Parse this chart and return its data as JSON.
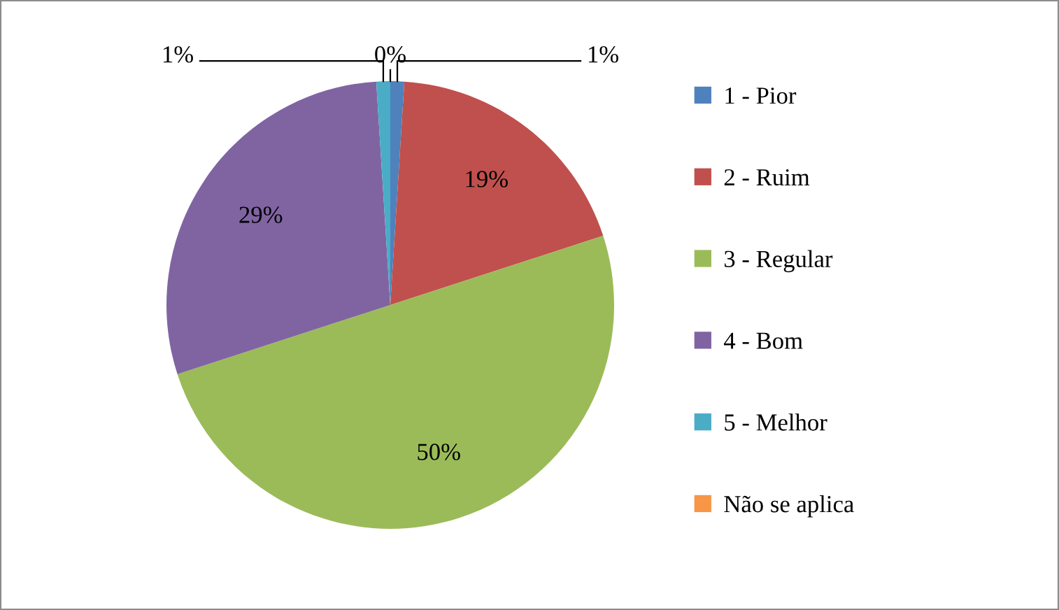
{
  "chart_data": {
    "type": "pie",
    "categories": [
      "1 - Pior",
      "2 - Ruim",
      "3 - Regular",
      "4 - Bom",
      "5 - Melhor",
      "Não se aplica"
    ],
    "values": [
      1,
      19,
      50,
      29,
      1,
      0
    ],
    "value_labels": [
      "1%",
      "19%",
      "50%",
      "29%",
      "1%",
      "0%"
    ],
    "colors": [
      "#4f81bd",
      "#c0504d",
      "#9bbb59",
      "#8064a2",
      "#4bacc6",
      "#f79646"
    ],
    "legend": "right"
  }
}
